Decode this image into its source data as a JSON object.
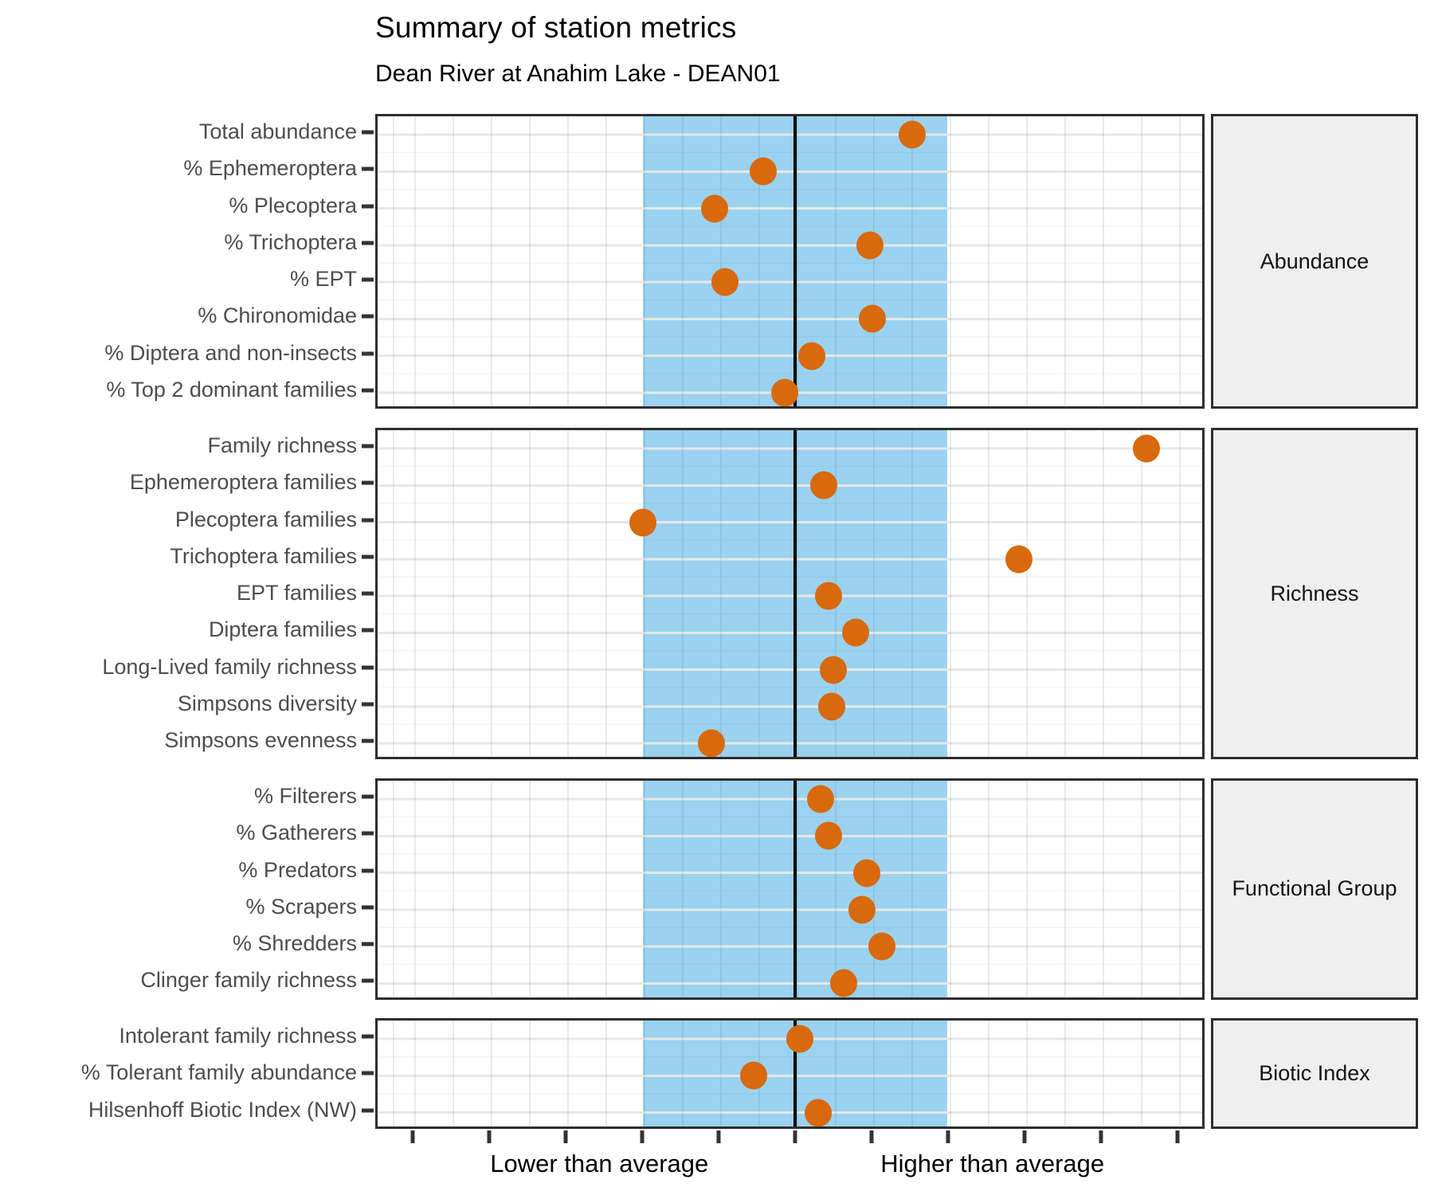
{
  "chart_data": {
    "type": "scatter",
    "title": "Summary of station metrics",
    "subtitle": "Dean River at Anahim Lake - DEAN01",
    "orientation": "horizontal-dot-plot",
    "x_axis": {
      "label_lower": "Lower than average",
      "label_higher": "Higher than average",
      "label_positions_sd": [
        -1.28,
        1.29
      ],
      "range_sd": [
        -2.74,
        2.68
      ],
      "tick_values_sd": [
        -2.5,
        -2.0,
        -1.5,
        -1.0,
        -0.5,
        0,
        0.5,
        1.0,
        1.5,
        2.0,
        2.5
      ],
      "tick_labels_shown": false,
      "minor_gridline_interval_sd": 0.25
    },
    "reference": {
      "center_line_sd": 0,
      "shaded_band_sd": [
        -1,
        1
      ]
    },
    "legend_position": "none",
    "grid": true,
    "panels": [
      {
        "strip": "Abundance",
        "metrics": [
          {
            "label": "Total abundance",
            "value": 0.77
          },
          {
            "label": "% Ephemeroptera",
            "value": -0.21
          },
          {
            "label": "% Plecoptera",
            "value": -0.53
          },
          {
            "label": "% Trichoptera",
            "value": 0.49
          },
          {
            "label": "% EPT",
            "value": -0.46
          },
          {
            "label": "% Chironomidae",
            "value": 0.51
          },
          {
            "label": "% Diptera and non-insects",
            "value": 0.11
          },
          {
            "label": "% Top 2 dominant families",
            "value": -0.07
          }
        ]
      },
      {
        "strip": "Richness",
        "metrics": [
          {
            "label": "Family richness",
            "value": 2.31
          },
          {
            "label": "Ephemeroptera families",
            "value": 0.19
          },
          {
            "label": "Plecoptera families",
            "value": -1.0
          },
          {
            "label": "Trichoptera families",
            "value": 1.47
          },
          {
            "label": "EPT families",
            "value": 0.22
          },
          {
            "label": "Diptera families",
            "value": 0.4
          },
          {
            "label": "Long-Lived family richness",
            "value": 0.25
          },
          {
            "label": "Simpsons diversity",
            "value": 0.24
          },
          {
            "label": "Simpsons evenness",
            "value": -0.55
          }
        ]
      },
      {
        "strip": "Functional Group",
        "metrics": [
          {
            "label": "% Filterers",
            "value": 0.17
          },
          {
            "label": "% Gatherers",
            "value": 0.22
          },
          {
            "label": "% Predators",
            "value": 0.47
          },
          {
            "label": "% Scrapers",
            "value": 0.44
          },
          {
            "label": "% Shredders",
            "value": 0.57
          },
          {
            "label": "Clinger family richness",
            "value": 0.32
          }
        ]
      },
      {
        "strip": "Biotic Index",
        "metrics": [
          {
            "label": "Intolerant family richness",
            "value": 0.03
          },
          {
            "label": "% Tolerant family abundance",
            "value": -0.27
          },
          {
            "label": "Hilsenhoff Biotic Index (NW)",
            "value": 0.15
          }
        ]
      }
    ],
    "colors": {
      "dot": "#D8690D",
      "band": "#9AD2F0",
      "center_line": "#000000",
      "panel_border": "#2E2E2E",
      "strip_background": "#EFEFEF",
      "axis_text": "#4D4D4D",
      "gridline": "#E7E7E7"
    }
  }
}
